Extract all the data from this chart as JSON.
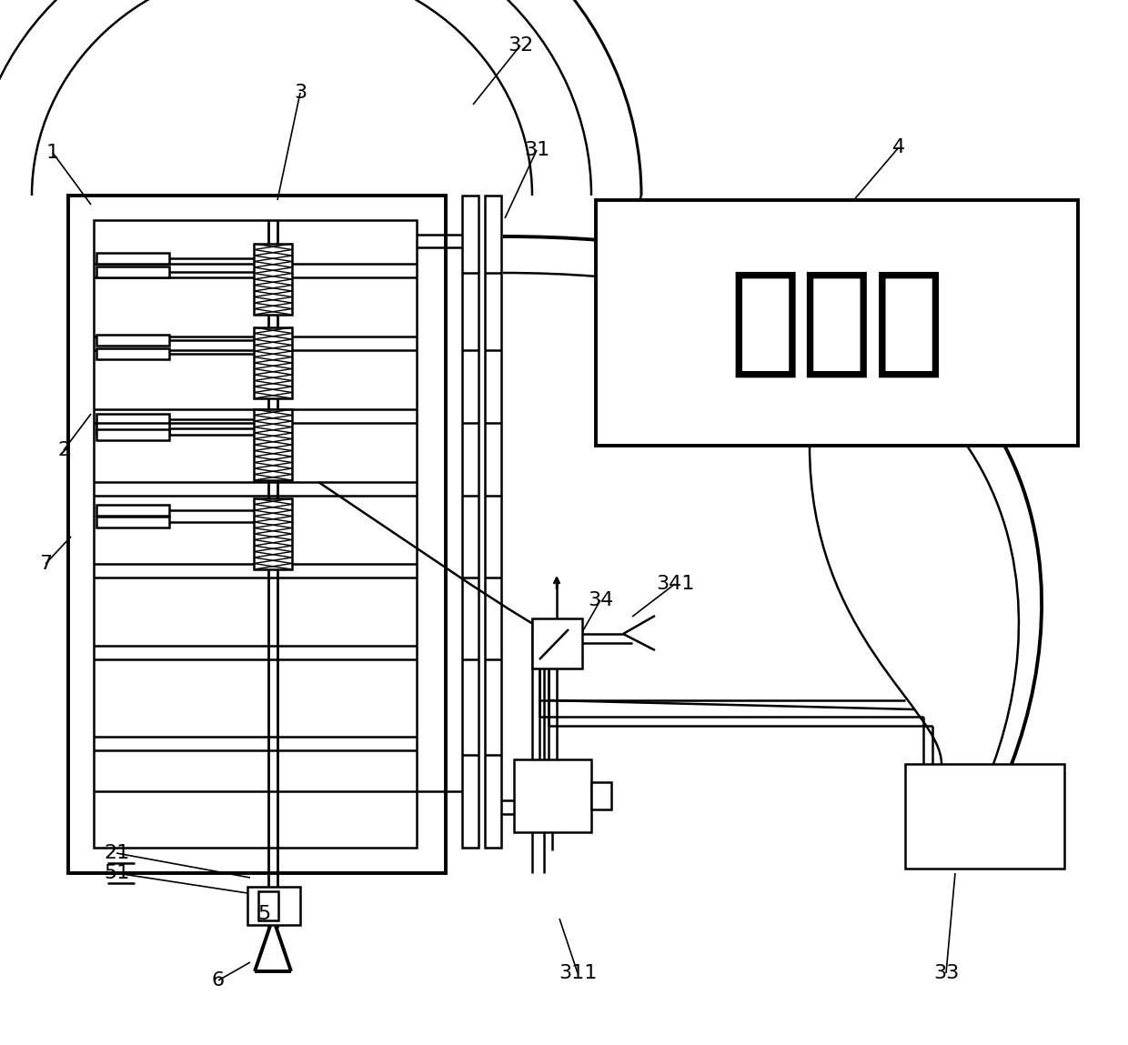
{
  "bg": "#ffffff",
  "lc": "#000000",
  "controller_text": "控制器",
  "lw": 1.8,
  "tlw": 2.8
}
